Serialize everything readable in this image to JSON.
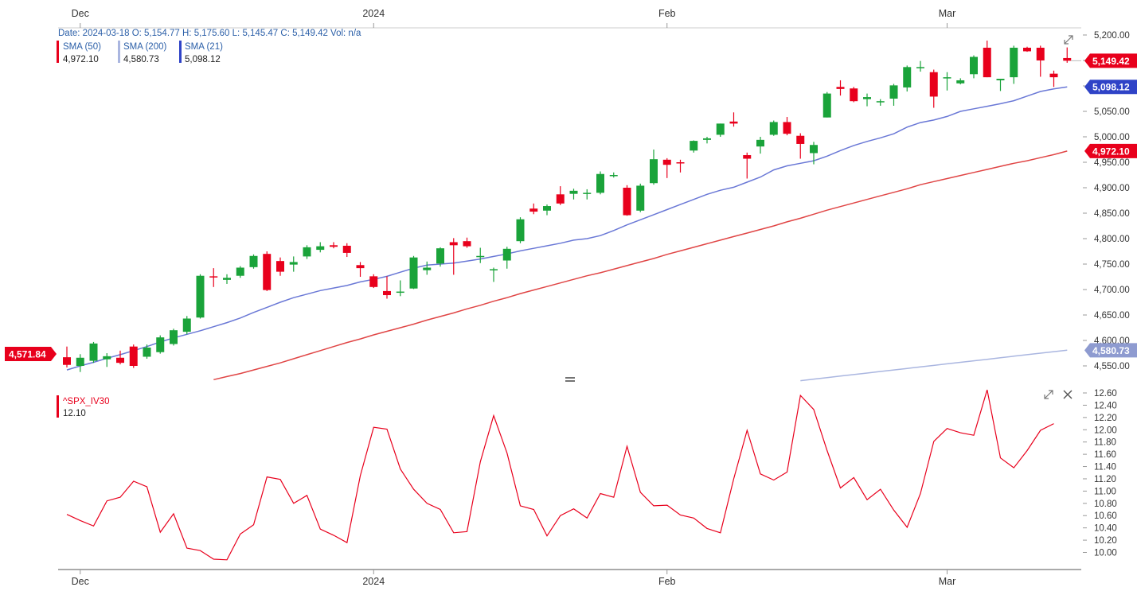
{
  "colors": {
    "up": "#1aa33a",
    "down": "#e8001c",
    "sma50": "#e04545",
    "sma200": "#aab6e0",
    "sma21": "#6a78d6",
    "sma21_tag": "#2f43c7",
    "iv_line": "#e8001c",
    "axis_text": "#333333",
    "info_blue": "#2b5fa8",
    "grid": "#e6e6e6"
  },
  "header": {
    "info_line": "Date: 2024-03-18  O: 5,154.77  H: 5,175.60  L: 5,145.47  C: 5,149.42  Vol: n/a",
    "legend": [
      {
        "name": "SMA (50)",
        "value": "4,972.10",
        "color": "#e8001c"
      },
      {
        "name": "SMA (200)",
        "value": "4,580.73",
        "color": "#aab6e0"
      },
      {
        "name": "SMA (21)",
        "value": "5,098.12",
        "color": "#2f43c7"
      }
    ]
  },
  "price_tags": {
    "last_close": "5,149.42",
    "sma21": "5,098.12",
    "sma50": "4,972.10",
    "sma200": "4,580.73",
    "left_marker": "4,571.84"
  },
  "chart_data": [
    {
      "type": "candlestick",
      "title": "",
      "x_axis_labels": [
        "Dec",
        "2024",
        "Feb",
        "Mar"
      ],
      "x_axis_label_index": [
        1,
        23,
        45,
        66
      ],
      "y_ticks": [
        4550,
        4600,
        4650,
        4700,
        4750,
        4800,
        4850,
        4900,
        4950,
        5000,
        5050,
        5100,
        5150,
        5200
      ],
      "y_tick_labels": [
        "4,550.00",
        "4,600.00",
        "4,650.00",
        "4,700.00",
        "4,750.00",
        "4,800.00",
        "4,850.00",
        "4,900.00",
        "4,950.00",
        "5,000.00",
        "5,050.00",
        "5,100.00",
        "5,150.00",
        "5,200.00"
      ],
      "ylim": [
        4530,
        5215
      ],
      "candles": [
        {
          "o": 4567,
          "h": 4588,
          "l": 4547,
          "c": 4552
        },
        {
          "o": 4550,
          "h": 4573,
          "l": 4538,
          "c": 4566
        },
        {
          "o": 4560,
          "h": 4597,
          "l": 4556,
          "c": 4594
        },
        {
          "o": 4563,
          "h": 4575,
          "l": 4548,
          "c": 4569
        },
        {
          "o": 4566,
          "h": 4580,
          "l": 4553,
          "c": 4556
        },
        {
          "o": 4588,
          "h": 4592,
          "l": 4546,
          "c": 4550
        },
        {
          "o": 4568,
          "h": 4592,
          "l": 4564,
          "c": 4586
        },
        {
          "o": 4577,
          "h": 4610,
          "l": 4574,
          "c": 4606
        },
        {
          "o": 4593,
          "h": 4623,
          "l": 4590,
          "c": 4620
        },
        {
          "o": 4617,
          "h": 4648,
          "l": 4612,
          "c": 4643
        },
        {
          "o": 4645,
          "h": 4730,
          "l": 4643,
          "c": 4727
        },
        {
          "o": 4726,
          "h": 4742,
          "l": 4705,
          "c": 4725
        },
        {
          "o": 4719,
          "h": 4730,
          "l": 4711,
          "c": 4723
        },
        {
          "o": 4727,
          "h": 4746,
          "l": 4723,
          "c": 4743
        },
        {
          "o": 4744,
          "h": 4769,
          "l": 4741,
          "c": 4766
        },
        {
          "o": 4770,
          "h": 4775,
          "l": 4697,
          "c": 4699
        },
        {
          "o": 4756,
          "h": 4763,
          "l": 4727,
          "c": 4735
        },
        {
          "o": 4749,
          "h": 4765,
          "l": 4735,
          "c": 4754
        },
        {
          "o": 4765,
          "h": 4787,
          "l": 4760,
          "c": 4783
        },
        {
          "o": 4778,
          "h": 4793,
          "l": 4773,
          "c": 4785
        },
        {
          "o": 4787,
          "h": 4793,
          "l": 4781,
          "c": 4784
        },
        {
          "o": 4786,
          "h": 4791,
          "l": 4764,
          "c": 4772
        },
        {
          "o": 4748,
          "h": 4754,
          "l": 4725,
          "c": 4742
        },
        {
          "o": 4726,
          "h": 4730,
          "l": 4703,
          "c": 4705
        },
        {
          "o": 4697,
          "h": 4726,
          "l": 4682,
          "c": 4689
        },
        {
          "o": 4696,
          "h": 4718,
          "l": 4687,
          "c": 4696
        },
        {
          "o": 4702,
          "h": 4766,
          "l": 4701,
          "c": 4763
        },
        {
          "o": 4738,
          "h": 4755,
          "l": 4729,
          "c": 4743
        },
        {
          "o": 4751,
          "h": 4783,
          "l": 4745,
          "c": 4781
        },
        {
          "o": 4793,
          "h": 4801,
          "l": 4729,
          "c": 4787
        },
        {
          "o": 4795,
          "h": 4802,
          "l": 4782,
          "c": 4785
        },
        {
          "o": 4766,
          "h": 4782,
          "l": 4752,
          "c": 4766
        },
        {
          "o": 4740,
          "h": 4743,
          "l": 4715,
          "c": 4740
        },
        {
          "o": 4757,
          "h": 4784,
          "l": 4741,
          "c": 4780
        },
        {
          "o": 4795,
          "h": 4842,
          "l": 4791,
          "c": 4838
        },
        {
          "o": 4859,
          "h": 4869,
          "l": 4848,
          "c": 4853
        },
        {
          "o": 4855,
          "h": 4867,
          "l": 4846,
          "c": 4864
        },
        {
          "o": 4887,
          "h": 4903,
          "l": 4866,
          "c": 4869
        },
        {
          "o": 4888,
          "h": 4898,
          "l": 4877,
          "c": 4894
        },
        {
          "o": 4890,
          "h": 4897,
          "l": 4877,
          "c": 4890
        },
        {
          "o": 4890,
          "h": 4932,
          "l": 4887,
          "c": 4927
        },
        {
          "o": 4925,
          "h": 4930,
          "l": 4920,
          "c": 4925
        },
        {
          "o": 4900,
          "h": 4905,
          "l": 4845,
          "c": 4846
        },
        {
          "o": 4855,
          "h": 4908,
          "l": 4852,
          "c": 4904
        },
        {
          "o": 4909,
          "h": 4975,
          "l": 4906,
          "c": 4956
        },
        {
          "o": 4955,
          "h": 4958,
          "l": 4919,
          "c": 4945
        },
        {
          "o": 4950,
          "h": 4955,
          "l": 4930,
          "c": 4949
        },
        {
          "o": 4973,
          "h": 4993,
          "l": 4969,
          "c": 4992
        },
        {
          "o": 4994,
          "h": 5000,
          "l": 4987,
          "c": 4997
        },
        {
          "o": 5004,
          "h": 5026,
          "l": 5000,
          "c": 5026
        },
        {
          "o": 5030,
          "h": 5048,
          "l": 5020,
          "c": 5026
        },
        {
          "o": 4964,
          "h": 4969,
          "l": 4918,
          "c": 4957
        },
        {
          "o": 4981,
          "h": 5000,
          "l": 4967,
          "c": 4994
        },
        {
          "o": 5004,
          "h": 5032,
          "l": 5002,
          "c": 5029
        },
        {
          "o": 5029,
          "h": 5039,
          "l": 5003,
          "c": 5006
        },
        {
          "o": 5002,
          "h": 5007,
          "l": 4957,
          "c": 4986
        },
        {
          "o": 4968,
          "h": 4990,
          "l": 4946,
          "c": 4984
        },
        {
          "o": 5038,
          "h": 5088,
          "l": 5038,
          "c": 5085
        },
        {
          "o": 5098,
          "h": 5111,
          "l": 5081,
          "c": 5094
        },
        {
          "o": 5095,
          "h": 5098,
          "l": 5068,
          "c": 5070
        },
        {
          "o": 5074,
          "h": 5085,
          "l": 5060,
          "c": 5078
        },
        {
          "o": 5070,
          "h": 5074,
          "l": 5061,
          "c": 5070
        },
        {
          "o": 5075,
          "h": 5104,
          "l": 5061,
          "c": 5101
        },
        {
          "o": 5097,
          "h": 5140,
          "l": 5089,
          "c": 5137
        },
        {
          "o": 5136,
          "h": 5149,
          "l": 5128,
          "c": 5137
        },
        {
          "o": 5127,
          "h": 5132,
          "l": 5057,
          "c": 5079
        },
        {
          "o": 5117,
          "h": 5127,
          "l": 5091,
          "c": 5117
        },
        {
          "o": 5105,
          "h": 5115,
          "l": 5103,
          "c": 5111
        },
        {
          "o": 5123,
          "h": 5160,
          "l": 5115,
          "c": 5157
        },
        {
          "o": 5175,
          "h": 5189,
          "l": 5117,
          "c": 5117
        },
        {
          "o": 5111,
          "h": 5114,
          "l": 5090,
          "c": 5114
        },
        {
          "o": 5117,
          "h": 5179,
          "l": 5104,
          "c": 5175
        },
        {
          "o": 5175,
          "h": 5177,
          "l": 5167,
          "c": 5168
        },
        {
          "o": 5175,
          "h": 5179,
          "l": 5118,
          "c": 5150
        },
        {
          "o": 5124,
          "h": 5130,
          "l": 5098,
          "c": 5117
        },
        {
          "o": 5154.77,
          "h": 5175.6,
          "l": 5145.47,
          "c": 5149.42
        }
      ],
      "series": [
        {
          "name": "SMA (50)",
          "values": [
            4500,
            4505,
            4511,
            4517,
            4523,
            4529,
            4535,
            4542,
            4549,
            4556,
            4564,
            4572,
            4580,
            4588,
            4596,
            4603,
            4611,
            4618,
            4625,
            4632,
            4640,
            4647,
            4654,
            4662,
            4669,
            4677,
            4684,
            4692,
            4699,
            4706,
            4713,
            4720,
            4727,
            4733,
            4740,
            4747,
            4754,
            4761,
            4769,
            4776,
            4783,
            4790,
            4797,
            4804,
            4811,
            4818,
            4825,
            4833,
            4840,
            4848,
            4856,
            4863,
            4870,
            4877,
            4884,
            4891,
            4898,
            4906,
            4912,
            4918,
            4924,
            4930,
            4936,
            4942,
            4948,
            4953,
            4959,
            4965,
            4972.1
          ]
        },
        {
          "name": "SMA (200)",
          "values": [
            4500,
            4502,
            4504,
            4507,
            4509,
            4512,
            4515,
            4518,
            4521,
            4524,
            4527,
            4530,
            4533,
            4536,
            4539,
            4542,
            4545,
            4548,
            4551,
            4554,
            4557,
            4560,
            4563,
            4566,
            4569,
            4572,
            4575,
            4578,
            4580.73
          ]
        },
        {
          "name": "SMA (21)",
          "values": [
            4510,
            4516,
            4525,
            4533,
            4542,
            4550,
            4557,
            4565,
            4572,
            4580,
            4588,
            4597,
            4605,
            4612,
            4619,
            4627,
            4635,
            4644,
            4655,
            4665,
            4675,
            4684,
            4691,
            4698,
            4703,
            4708,
            4715,
            4720,
            4726,
            4734,
            4742,
            4748,
            4750,
            4752,
            4756,
            4760,
            4765,
            4770,
            4776,
            4781,
            4786,
            4791,
            4797,
            4800,
            4806,
            4816,
            4827,
            4837,
            4847,
            4857,
            4867,
            4877,
            4887,
            4895,
            4901,
            4911,
            4921,
            4935,
            4943,
            4948,
            4953,
            4962,
            4973,
            4983,
            4991,
            4998,
            5006,
            5019,
            5028,
            5033,
            5040,
            5050,
            5055,
            5060,
            5065,
            5071,
            5080,
            5089,
            5094,
            5098.12
          ]
        }
      ]
    },
    {
      "type": "line",
      "title": "",
      "series": [
        {
          "name": "^SPX_IV30",
          "last_value": "12.10",
          "values": [
            10.62,
            10.52,
            10.43,
            10.84,
            10.9,
            11.16,
            11.07,
            10.33,
            10.63,
            10.07,
            10.03,
            9.89,
            9.88,
            10.3,
            10.45,
            11.23,
            11.19,
            10.8,
            10.93,
            10.38,
            10.28,
            10.16,
            11.25,
            12.04,
            12.01,
            11.36,
            11.03,
            10.8,
            10.7,
            10.32,
            10.34,
            11.48,
            12.23,
            11.62,
            10.76,
            10.7,
            10.27,
            10.6,
            10.71,
            10.56,
            10.96,
            10.9,
            11.73,
            10.98,
            10.76,
            10.77,
            10.61,
            10.56,
            10.39,
            10.32,
            11.2,
            11.99,
            11.28,
            11.18,
            11.31,
            12.56,
            12.33,
            11.66,
            11.05,
            11.22,
            10.86,
            11.03,
            10.69,
            10.41,
            10.96,
            11.81,
            12.02,
            11.95,
            11.91,
            12.65,
            11.54,
            11.38,
            11.66,
            11.99,
            12.1
          ]
        }
      ],
      "y_ticks": [
        10.0,
        10.2,
        10.4,
        10.6,
        10.8,
        11.0,
        11.2,
        11.4,
        11.6,
        11.8,
        12.0,
        12.2,
        12.4,
        12.6
      ],
      "y_tick_labels": [
        "10.00",
        "10.20",
        "10.40",
        "10.60",
        "10.80",
        "11.00",
        "11.20",
        "11.40",
        "11.60",
        "11.80",
        "12.00",
        "12.20",
        "12.40",
        "12.60"
      ],
      "ylim": [
        9.82,
        12.66
      ],
      "x_axis_labels": [
        "Dec",
        "2024",
        "Feb",
        "Mar"
      ]
    }
  ]
}
